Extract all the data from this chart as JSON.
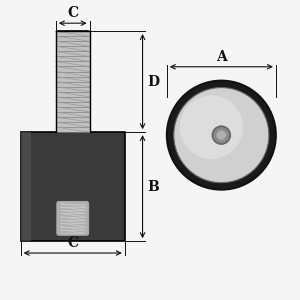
{
  "bg_color": "#f5f5f5",
  "rubber_color": "#3a3a3a",
  "rubber_highlight": "#555555",
  "bolt_face_color": "#c0c0c0",
  "bolt_edge_color": "#888888",
  "thread_line_color": "#888888",
  "thread_diag_color": "#999999",
  "insert_face_color": "#b0b0b0",
  "insert_edge_color": "#aaaaaa",
  "insert_thread_color": "#cccccc",
  "disc_outer_color": "#1a1a1a",
  "disc_metal_color": "#d0d0d0",
  "disc_shine_color": "#e8e8e8",
  "disc_hole_ring_color": "#888888",
  "disc_hole_color": "#b0b0b0",
  "dim_color": "#111111",
  "label_A": "A",
  "label_B": "B",
  "label_C": "C",
  "label_D": "D",
  "font_size": 10
}
